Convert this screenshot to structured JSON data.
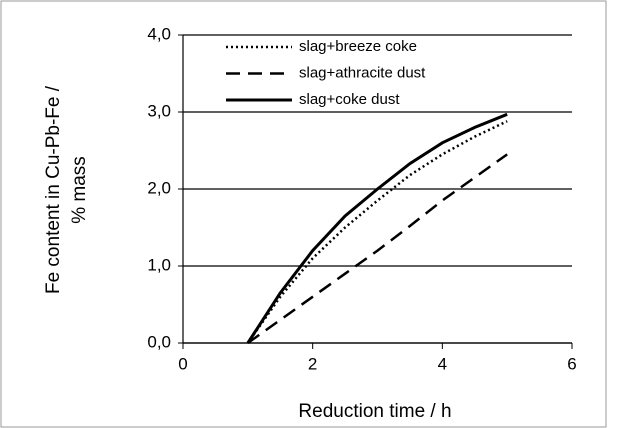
{
  "chart_data": {
    "type": "line",
    "ylabel": [
      "Fe content in Cu-Pb-Fe /",
      "% mass"
    ],
    "xlabel": "Reduction time / h",
    "x": [
      1,
      1.5,
      2,
      2.5,
      3,
      3.5,
      4,
      4.5,
      5
    ],
    "series": [
      {
        "name": "slag+breeze coke",
        "color": "#000000",
        "dash": "dotted",
        "values": [
          0,
          0.6,
          1.1,
          1.5,
          1.85,
          2.18,
          2.45,
          2.68,
          2.88
        ]
      },
      {
        "name": "slag+athracite dust",
        "color": "#000000",
        "dash": "dashed",
        "values": [
          0,
          0.3,
          0.6,
          0.9,
          1.2,
          1.52,
          1.85,
          2.15,
          2.45
        ]
      },
      {
        "name": "slag+coke dust",
        "color": "#000000",
        "dash": "solid",
        "values": [
          0,
          0.65,
          1.2,
          1.65,
          2.0,
          2.33,
          2.6,
          2.8,
          2.97
        ]
      }
    ],
    "xlim": [
      0,
      6
    ],
    "xticks": [
      0,
      2,
      4,
      6
    ],
    "ylim": [
      0,
      4
    ],
    "yticks": [
      {
        "value": 0,
        "label": "0,0"
      },
      {
        "value": 1,
        "label": "1,0"
      },
      {
        "value": 2,
        "label": "2,0"
      },
      {
        "value": 3,
        "label": "3,0"
      },
      {
        "value": 4,
        "label": "4,0"
      }
    ],
    "grid": true,
    "legend": "top"
  }
}
